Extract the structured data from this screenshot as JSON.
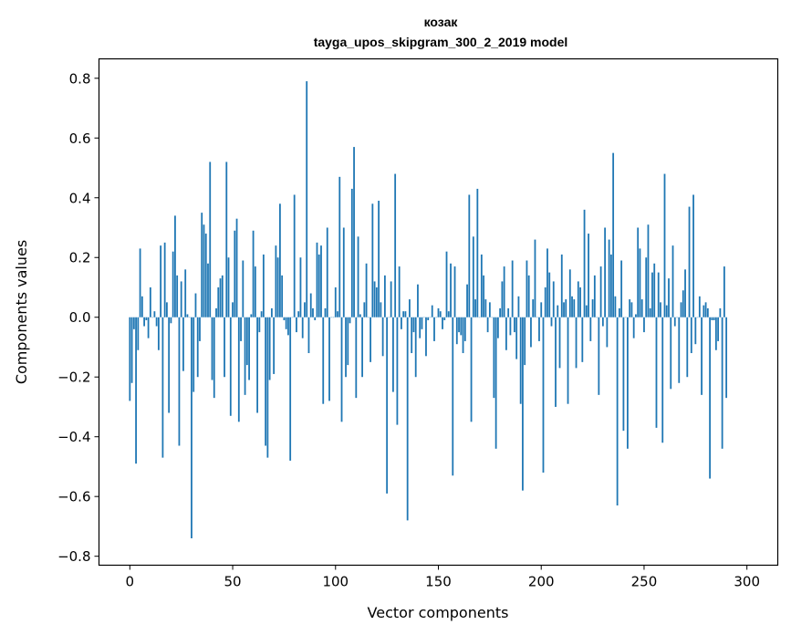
{
  "chart_data": {
    "type": "bar",
    "title": "козак",
    "subtitle": "tayga_upos_skipgram_300_2_2019 model",
    "xlabel": "Vector components",
    "ylabel": "Components values",
    "xlim": [
      -15,
      315
    ],
    "ylim": [
      -0.83,
      0.865
    ],
    "xticks": [
      0,
      50,
      100,
      150,
      200,
      250,
      300
    ],
    "yticks": [
      -0.8,
      -0.6,
      -0.4,
      -0.2,
      0.0,
      0.2,
      0.4,
      0.6,
      0.8
    ],
    "ytick_labels": [
      "−0.8",
      "−0.6",
      "−0.4",
      "−0.2",
      "0.0",
      "0.2",
      "0.4",
      "0.6",
      "0.8"
    ],
    "bar_color": "#1f77b4",
    "grid": false,
    "values": [
      -0.28,
      -0.22,
      -0.04,
      -0.49,
      -0.11,
      0.23,
      0.07,
      -0.03,
      -0.01,
      -0.07,
      0.1,
      0.0,
      0.02,
      -0.03,
      -0.11,
      0.24,
      -0.47,
      0.25,
      0.05,
      -0.32,
      -0.02,
      0.22,
      0.34,
      0.14,
      -0.43,
      0.12,
      -0.18,
      0.16,
      0.01,
      0.0,
      -0.74,
      -0.25,
      0.08,
      -0.2,
      -0.08,
      0.35,
      0.31,
      0.28,
      0.18,
      0.52,
      -0.21,
      -0.27,
      0.03,
      0.1,
      0.13,
      0.14,
      -0.2,
      0.52,
      0.2,
      -0.33,
      0.05,
      0.29,
      0.33,
      -0.35,
      -0.08,
      0.19,
      -0.26,
      -0.16,
      -0.21,
      0.01,
      0.29,
      0.17,
      -0.32,
      -0.05,
      0.02,
      0.21,
      -0.43,
      -0.47,
      -0.21,
      0.03,
      -0.19,
      0.24,
      0.2,
      0.38,
      0.14,
      -0.01,
      -0.04,
      -0.06,
      -0.48,
      0.0,
      0.41,
      -0.05,
      0.02,
      0.2,
      -0.07,
      0.05,
      0.79,
      -0.12,
      0.08,
      0.03,
      -0.01,
      0.25,
      0.21,
      0.24,
      -0.29,
      0.03,
      0.3,
      -0.28,
      0.0,
      0.0,
      0.1,
      0.02,
      0.47,
      -0.35,
      0.3,
      -0.2,
      -0.16,
      -0.02,
      0.43,
      0.57,
      -0.27,
      0.27,
      0.01,
      -0.2,
      0.05,
      0.18,
      0.0,
      -0.15,
      0.38,
      0.12,
      0.1,
      0.39,
      0.05,
      -0.13,
      0.14,
      -0.59,
      0.0,
      0.12,
      -0.25,
      0.48,
      -0.36,
      0.17,
      -0.04,
      0.02,
      0.02,
      -0.68,
      0.06,
      -0.12,
      -0.05,
      -0.2,
      0.11,
      -0.07,
      -0.04,
      0.0,
      -0.13,
      -0.01,
      0.0,
      0.04,
      -0.08,
      0.0,
      0.03,
      0.02,
      -0.04,
      -0.01,
      0.22,
      0.02,
      0.18,
      -0.53,
      0.17,
      -0.09,
      -0.05,
      -0.06,
      -0.12,
      -0.08,
      0.11,
      0.41,
      -0.35,
      0.27,
      0.06,
      0.43,
      0.0,
      0.21,
      0.14,
      0.06,
      -0.05,
      0.05,
      0.0,
      -0.27,
      -0.44,
      -0.07,
      0.03,
      0.12,
      0.17,
      -0.11,
      0.03,
      -0.06,
      0.19,
      -0.05,
      -0.14,
      0.07,
      -0.29,
      -0.58,
      -0.16,
      0.19,
      0.14,
      -0.1,
      0.06,
      0.26,
      0.0,
      -0.08,
      0.05,
      -0.52,
      0.1,
      0.23,
      0.15,
      -0.03,
      0.12,
      -0.3,
      0.04,
      -0.17,
      0.21,
      0.05,
      0.06,
      -0.29,
      0.16,
      0.07,
      0.06,
      -0.17,
      0.12,
      0.1,
      -0.15,
      0.36,
      0.04,
      0.28,
      -0.08,
      0.06,
      0.14,
      0.0,
      -0.26,
      0.17,
      -0.03,
      0.3,
      -0.1,
      0.26,
      0.21,
      0.55,
      0.07,
      -0.63,
      0.03,
      0.19,
      -0.38,
      0.0,
      -0.44,
      0.06,
      0.05,
      -0.07,
      0.01,
      0.3,
      0.23,
      0.06,
      -0.05,
      0.2,
      0.31,
      0.03,
      0.15,
      0.18,
      -0.37,
      0.15,
      0.05,
      -0.42,
      0.48,
      0.04,
      0.13,
      -0.24,
      0.24,
      -0.03,
      0.0,
      -0.22,
      0.05,
      0.09,
      0.16,
      -0.2,
      0.37,
      -0.12,
      0.41,
      -0.09,
      0.0,
      0.07,
      -0.26,
      0.04,
      0.05,
      0.03,
      -0.54,
      -0.01,
      -0.01,
      -0.11,
      -0.08,
      0.03,
      -0.44,
      0.17,
      -0.27
    ]
  }
}
